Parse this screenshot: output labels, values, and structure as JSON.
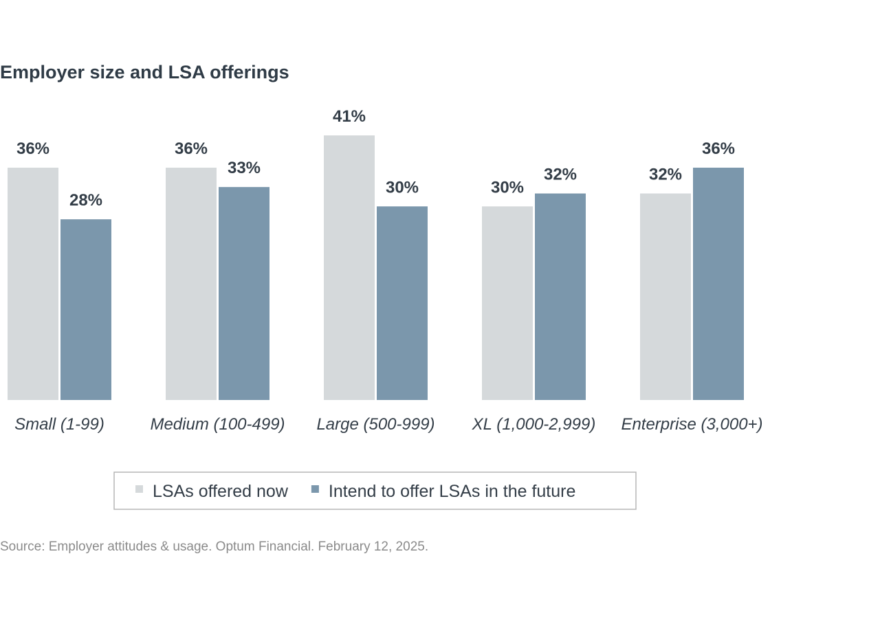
{
  "chart_data": {
    "type": "bar",
    "title": "Employer size and LSA offerings",
    "categories": [
      "Small (1-99)",
      "Medium (100-499)",
      "Large (500-999)",
      "XL (1,000-2,999)",
      "Enterprise (3,000+)"
    ],
    "series": [
      {
        "name": "LSAs offered now",
        "color": "#d5d9db",
        "values": [
          36,
          36,
          41,
          30,
          32
        ],
        "value_labels": [
          "36%",
          "36%",
          "41%",
          "30%",
          "32%"
        ]
      },
      {
        "name": "Intend to offer LSAs in the future",
        "color": "#7b97ac",
        "values": [
          28,
          33,
          30,
          32,
          36
        ],
        "value_labels": [
          "28%",
          "33%",
          "30%",
          "32%",
          "36%"
        ]
      }
    ],
    "source": "Source: Employer attitudes & usage. Optum Financial. February 12, 2025."
  }
}
